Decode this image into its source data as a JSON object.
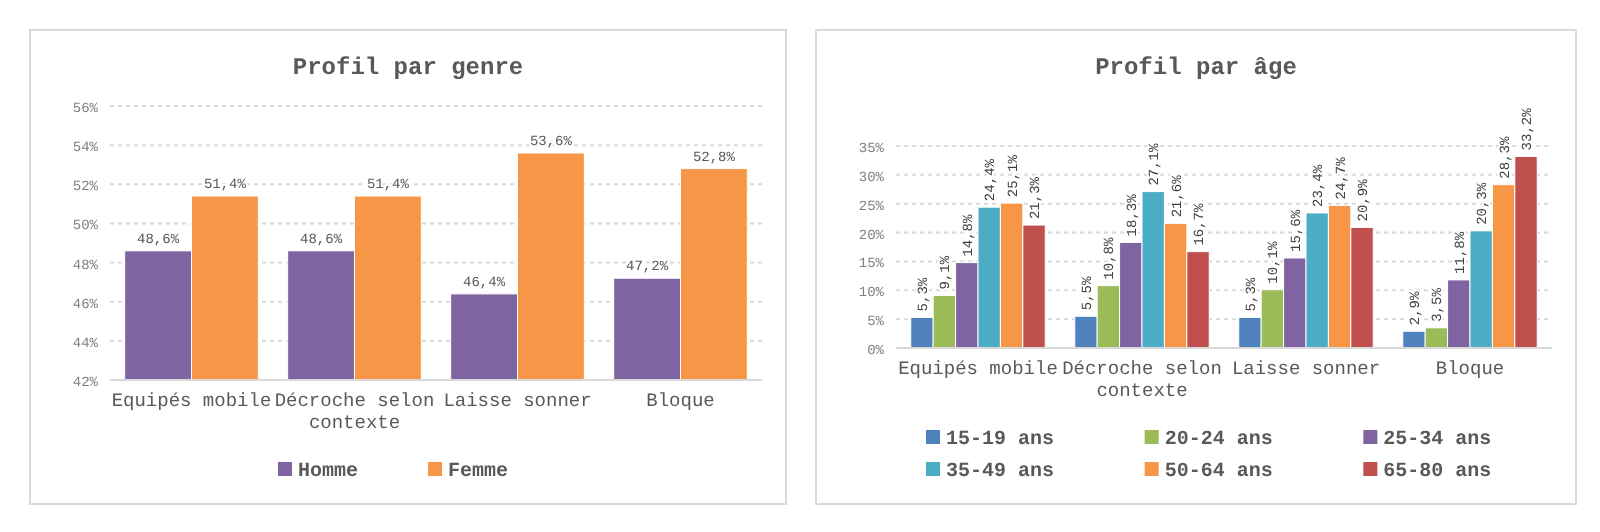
{
  "chart_data": [
    {
      "type": "bar",
      "title": "Profil par genre",
      "categories": [
        "Equipés mobile",
        "Décroche selon contexte",
        "Laisse sonner",
        "Bloque"
      ],
      "series": [
        {
          "name": "Homme",
          "color": "#8064a2",
          "values": [
            48.6,
            48.6,
            46.4,
            47.2
          ],
          "value_labels": [
            "48,6%",
            "48,6%",
            "46,4%",
            "47,2%"
          ]
        },
        {
          "name": "Femme",
          "color": "#f79646",
          "values": [
            51.4,
            51.4,
            53.6,
            52.8
          ],
          "value_labels": [
            "51,4%",
            "51,4%",
            "53,6%",
            "52,8%"
          ]
        }
      ],
      "ylim": [
        42,
        56
      ],
      "yticks": [
        {
          "value": 42,
          "label": "42%"
        },
        {
          "value": 44,
          "label": "44%"
        },
        {
          "value": 46,
          "label": "46%"
        },
        {
          "value": 48,
          "label": "48%"
        },
        {
          "value": 50,
          "label": "50%"
        },
        {
          "value": 52,
          "label": "52%"
        },
        {
          "value": 54,
          "label": "54%"
        },
        {
          "value": 56,
          "label": "56%"
        }
      ],
      "grid": "y",
      "legend": "bottom"
    },
    {
      "type": "bar",
      "title": "Profil par âge",
      "categories": [
        "Equipés mobile",
        "Décroche selon contexte",
        "Laisse sonner",
        "Bloque"
      ],
      "series": [
        {
          "name": "15-19 ans",
          "color": "#4f81bd",
          "values": [
            5.3,
            5.5,
            5.3,
            2.9
          ],
          "value_labels": [
            "5,3%",
            "5,5%",
            "5,3%",
            "2,9%"
          ]
        },
        {
          "name": "20-24 ans",
          "color": "#9bbb59",
          "values": [
            9.1,
            10.8,
            10.1,
            3.5
          ],
          "value_labels": [
            "9,1%",
            "10,8%",
            "10,1%",
            "3,5%"
          ]
        },
        {
          "name": "25-34 ans",
          "color": "#8064a2",
          "values": [
            14.8,
            18.3,
            15.6,
            11.8
          ],
          "value_labels": [
            "14,8%",
            "18,3%",
            "15,6%",
            "11,8%"
          ]
        },
        {
          "name": "35-49 ans",
          "color": "#4bacc6",
          "values": [
            24.4,
            27.1,
            23.4,
            20.3
          ],
          "value_labels": [
            "24,4%",
            "27,1%",
            "23,4%",
            "20,3%"
          ]
        },
        {
          "name": "50-64 ans",
          "color": "#f79646",
          "values": [
            25.1,
            21.6,
            24.7,
            28.3
          ],
          "value_labels": [
            "25,1%",
            "21,6%",
            "24,7%",
            "28,3%"
          ]
        },
        {
          "name": "65-80 ans",
          "color": "#c0504d",
          "values": [
            21.3,
            16.7,
            20.9,
            33.2
          ],
          "value_labels": [
            "21,3%",
            "16,7%",
            "20,9%",
            "33,2%"
          ]
        }
      ],
      "ylim": [
        0,
        35
      ],
      "yticks": [
        {
          "value": 0,
          "label": "0%"
        },
        {
          "value": 5,
          "label": "5%"
        },
        {
          "value": 10,
          "label": "10%"
        },
        {
          "value": 15,
          "label": "15%"
        },
        {
          "value": 20,
          "label": "20%"
        },
        {
          "value": 25,
          "label": "25%"
        },
        {
          "value": 30,
          "label": "30%"
        },
        {
          "value": 35,
          "label": "35%"
        }
      ],
      "grid": "y",
      "legend": "bottom"
    }
  ]
}
